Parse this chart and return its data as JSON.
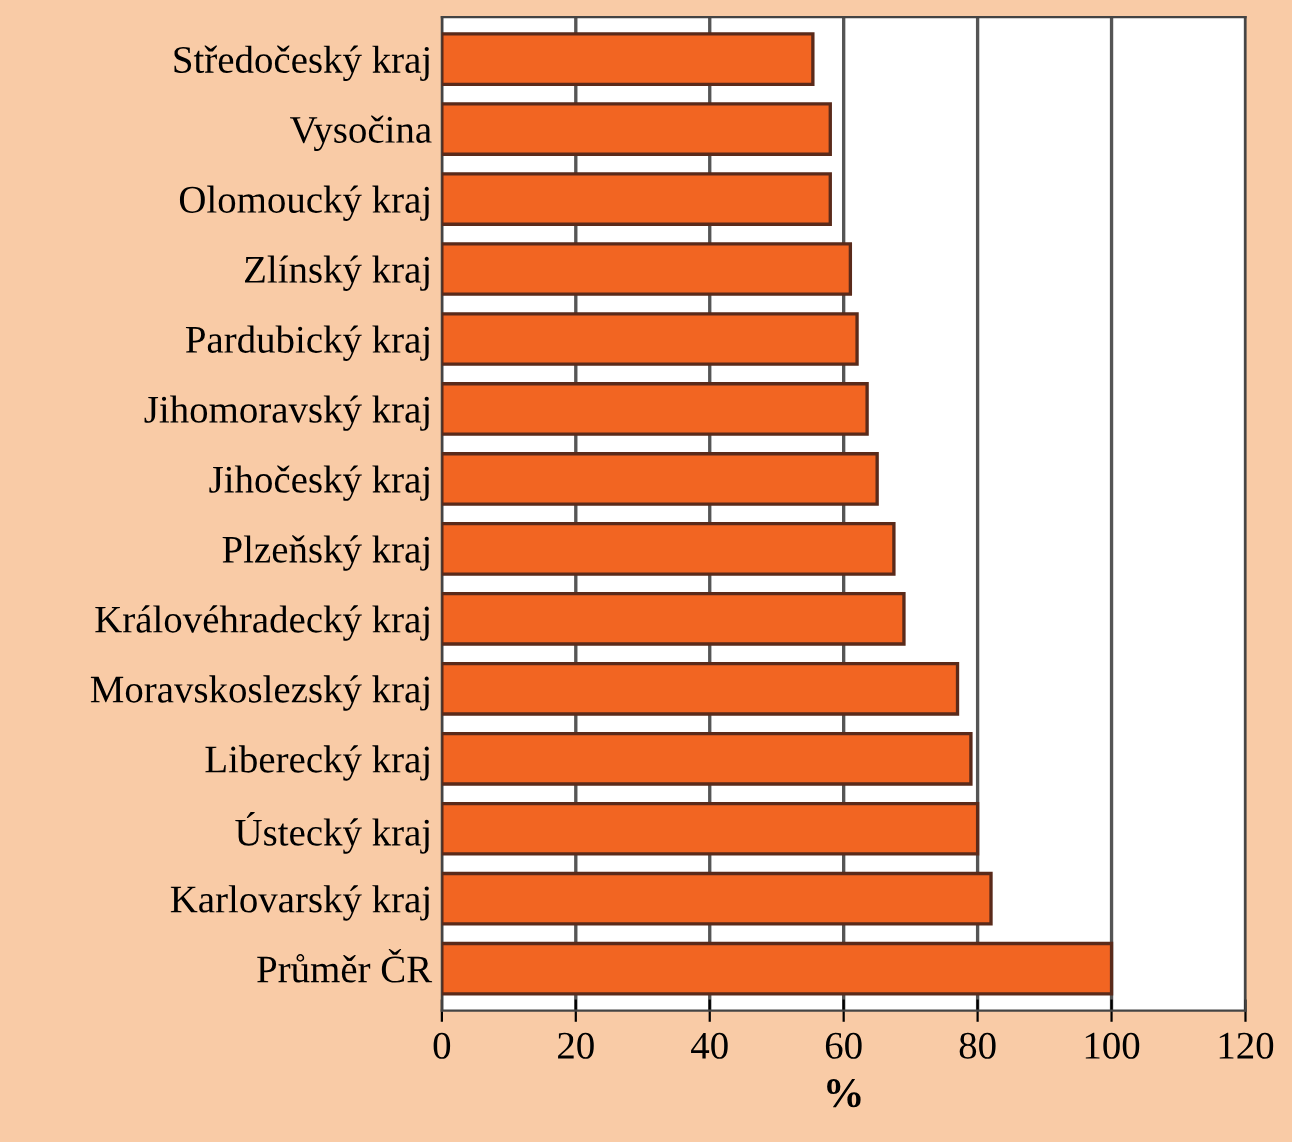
{
  "chart_data": {
    "type": "bar",
    "orientation": "horizontal",
    "xlabel": "%",
    "categories": [
      "Středočeský kraj",
      "Vysočina",
      "Olomoucký kraj",
      "Zlínský kraj",
      "Pardubický kraj",
      "Jihomoravský kraj",
      "Jihočeský kraj",
      "Plzeňský kraj",
      "Královéhradecký kraj",
      "Moravskoslezský kraj",
      "Liberecký kraj",
      "Ústecký kraj",
      "Karlovarský kraj",
      "Průměr ČR"
    ],
    "values": [
      55.4,
      58,
      58,
      61,
      62,
      63.5,
      65,
      67.5,
      69,
      77,
      79,
      80,
      82,
      100
    ],
    "color": "#f26522",
    "xlim": [
      0,
      120
    ],
    "xticks": [
      0,
      20,
      40,
      60,
      80,
      100,
      120
    ],
    "grid": "x",
    "legend": false
  }
}
